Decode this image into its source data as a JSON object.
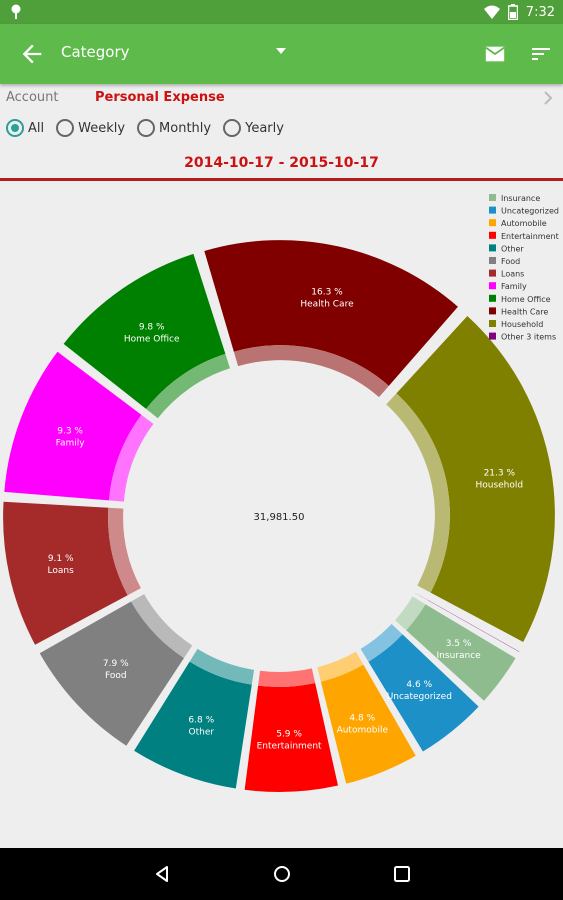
{
  "status": {
    "time": "7:32"
  },
  "toolbar": {
    "title": "Category"
  },
  "account": {
    "label": "Account",
    "name": "Personal Expense"
  },
  "periods": [
    {
      "label": "All",
      "selected": true
    },
    {
      "label": "Weekly",
      "selected": false
    },
    {
      "label": "Monthly",
      "selected": false
    },
    {
      "label": "Yearly",
      "selected": false
    }
  ],
  "date_range": "2014-10-17 - 2015-10-17",
  "chart_data": {
    "type": "pie",
    "center_total": "31,981.50",
    "legend_position": "top-right",
    "slices": [
      {
        "name": "Household",
        "value": 21.3,
        "label": "21.3 %",
        "color": "#808000"
      },
      {
        "name": "Other 3 items",
        "value": 0.4,
        "label": "0.4 %",
        "color": "#800080"
      },
      {
        "name": "Insurance",
        "value": 3.5,
        "label": "3.5 %",
        "color": "#8fbc8f"
      },
      {
        "name": "Uncategorized",
        "value": 4.6,
        "label": "4.6 %",
        "color": "#1e90c8"
      },
      {
        "name": "Automobile",
        "value": 4.8,
        "label": "4.8 %",
        "color": "#ffa500"
      },
      {
        "name": "Entertainment",
        "value": 5.9,
        "label": "5.9 %",
        "color": "#ff0000"
      },
      {
        "name": "Other",
        "value": 6.8,
        "label": "6.8 %",
        "color": "#008080"
      },
      {
        "name": "Food",
        "value": 7.9,
        "label": "7.9 %",
        "color": "#808080"
      },
      {
        "name": "Loans",
        "value": 9.1,
        "label": "9.1 %",
        "color": "#a52a2a"
      },
      {
        "name": "Family",
        "value": 9.3,
        "label": "9.3 %",
        "color": "#ff00ff"
      },
      {
        "name": "Home Office",
        "value": 9.8,
        "label": "9.8 %",
        "color": "#008000"
      },
      {
        "name": "Health Care",
        "value": 16.3,
        "label": "16.3 %",
        "color": "#800000"
      }
    ],
    "legend": [
      {
        "name": "Insurance",
        "color": "#8fbc8f"
      },
      {
        "name": "Uncategorized",
        "color": "#1e90c8"
      },
      {
        "name": "Automobile",
        "color": "#ffa500"
      },
      {
        "name": "Entertainment",
        "color": "#ff0000"
      },
      {
        "name": "Other",
        "color": "#008080"
      },
      {
        "name": "Food",
        "color": "#808080"
      },
      {
        "name": "Loans",
        "color": "#a52a2a"
      },
      {
        "name": "Family",
        "color": "#ff00ff"
      },
      {
        "name": "Home Office",
        "color": "#008000"
      },
      {
        "name": "Health Care",
        "color": "#800000"
      },
      {
        "name": "Household",
        "color": "#808000"
      },
      {
        "name": "Other 3 items",
        "color": "#800080"
      }
    ]
  }
}
